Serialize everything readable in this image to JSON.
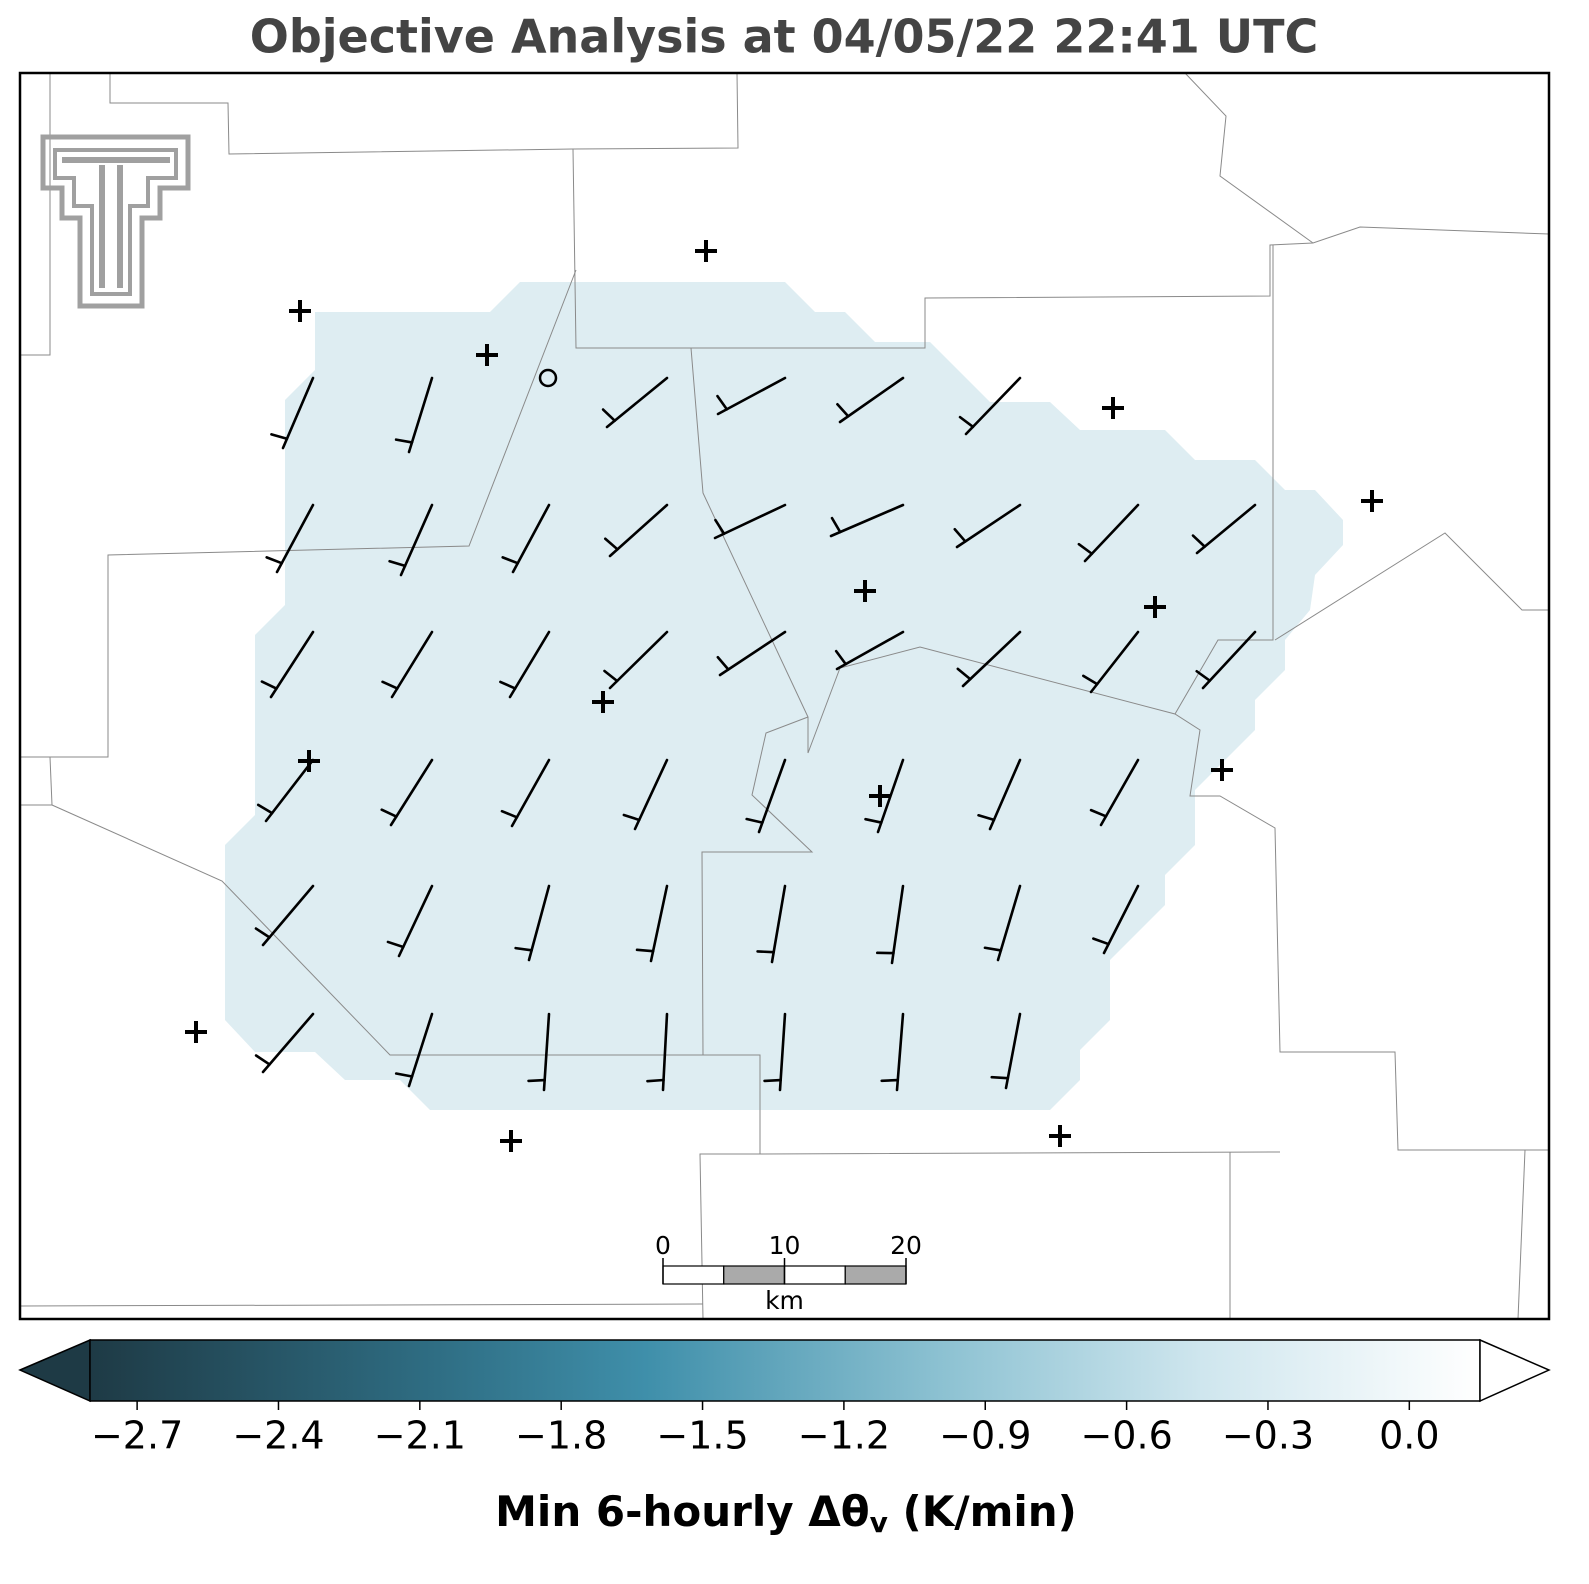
{
  "title": "Objective Analysis at 04/05/22 22:41 UTC",
  "colorbar": {
    "lim": [
      -2.8,
      0.15
    ],
    "ticks": [
      {
        "value": -2.7,
        "label": "−2.7"
      },
      {
        "value": -2.4,
        "label": "−2.4"
      },
      {
        "value": -2.1,
        "label": "−2.1"
      },
      {
        "value": -1.8,
        "label": "−1.8"
      },
      {
        "value": -1.5,
        "label": "−1.5"
      },
      {
        "value": -1.2,
        "label": "−1.2"
      },
      {
        "value": -0.9,
        "label": "−0.9"
      },
      {
        "value": -0.6,
        "label": "−0.6"
      },
      {
        "value": -0.3,
        "label": "−0.3"
      },
      {
        "value": 0.0,
        "label": "0.0"
      }
    ],
    "label": [
      "Min 6-hourly Δθ",
      "v",
      " (K/min)"
    ]
  },
  "scale_bar": {
    "lim": [
      0,
      20
    ],
    "ticks": [
      0,
      10,
      20
    ],
    "unit": "km"
  }
}
